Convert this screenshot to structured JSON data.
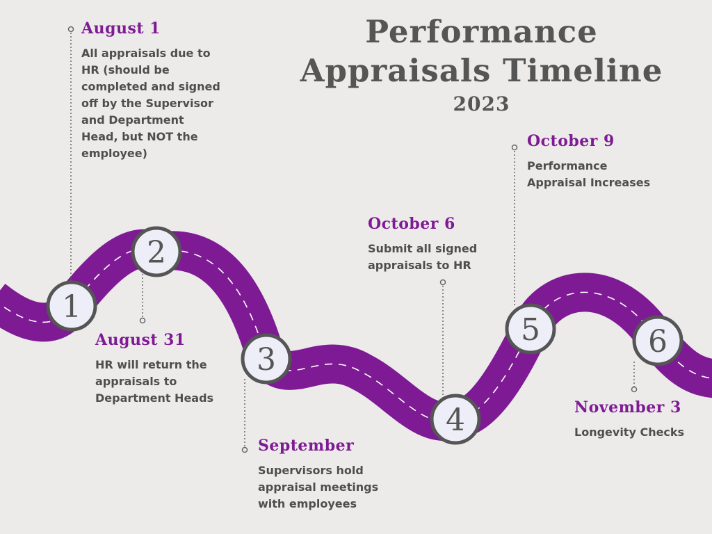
{
  "title": {
    "line1": "Performance",
    "line2": "Appraisals Timeline",
    "year": "2023"
  },
  "colors": {
    "background": "#edebea",
    "road": "#7e1b94",
    "date_text": "#7e1b94",
    "body_text": "#4e4e4e",
    "title_text": "#555555",
    "marker_fill": "#eeeef8",
    "marker_stroke": "#555555"
  },
  "milestones": [
    {
      "number": "1",
      "date": "August 1",
      "description": "All appraisals due to HR (should be completed and signed off by the Supervisor and Department Head, but NOT the employee)"
    },
    {
      "number": "2",
      "date": "August 31",
      "description": "HR will return the appraisals to Department Heads"
    },
    {
      "number": "3",
      "date": "September",
      "description": "Supervisors hold appraisal meetings with employees"
    },
    {
      "number": "4",
      "date": "October 6",
      "description": "Submit all signed appraisals to HR"
    },
    {
      "number": "5",
      "date": "October 9",
      "description": "Performance Appraisal Increases"
    },
    {
      "number": "6",
      "date": "November 3",
      "description": "Longevity Checks"
    }
  ]
}
